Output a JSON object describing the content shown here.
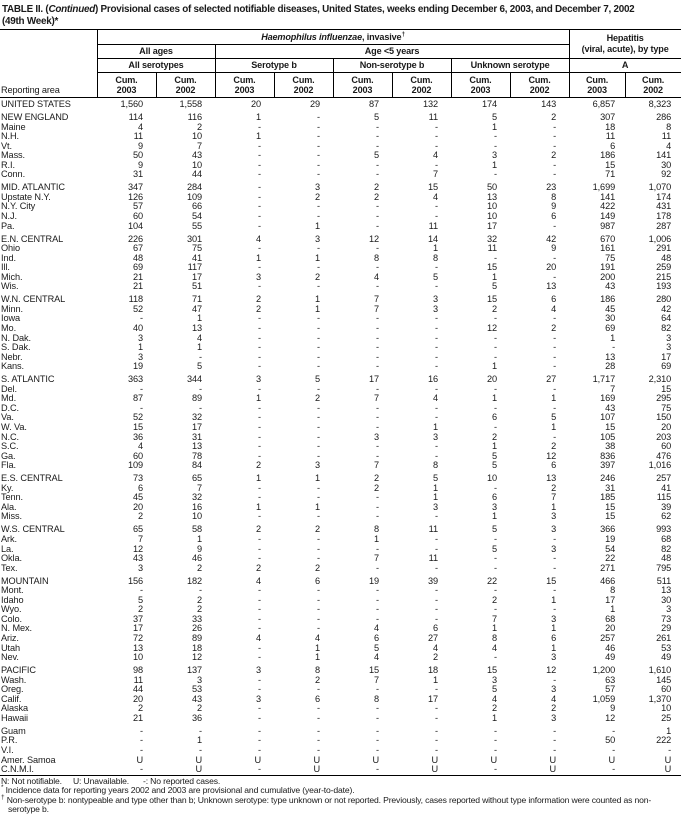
{
  "title": {
    "part1": "TABLE II. (",
    "part1_italic": "Continued",
    "part2": ") Provisional cases of selected notifiable diseases, United States, weeks ending December 6, 2003, and December 7, 2002",
    "line2": "(49th Week)*"
  },
  "table": {
    "header": {
      "reporting_area": "Reporting area",
      "haemophilus_italic": "Haemophilus influenzae",
      "haemophilus_rest": ", invasive",
      "haemophilus_sup": "†",
      "hepatitis_line1": "Hepatitis",
      "hepatitis_line2": "(viral, acute), by type",
      "all_ages": "All ages",
      "age_under5": "Age <5 years",
      "all_serotypes": "All serotypes",
      "serotype_b": "Serotype b",
      "non_serotype_b": "Non-serotype b",
      "unknown_serotype": "Unknown serotype",
      "hep_a": "A",
      "cum_label": "Cum.",
      "years": [
        "2003",
        "2002"
      ]
    },
    "rows": [
      {
        "area": "UNITED STATES",
        "gap": false,
        "values": [
          "1,560",
          "1,558",
          "20",
          "29",
          "87",
          "132",
          "174",
          "143",
          "6,857",
          "8,323"
        ]
      },
      {
        "area": "NEW ENGLAND",
        "gap": true,
        "values": [
          "114",
          "116",
          "1",
          "-",
          "5",
          "11",
          "5",
          "2",
          "307",
          "286"
        ]
      },
      {
        "area": "Maine",
        "gap": false,
        "values": [
          "4",
          "2",
          "-",
          "-",
          "-",
          "-",
          "1",
          "-",
          "18",
          "8"
        ]
      },
      {
        "area": "N.H.",
        "gap": false,
        "values": [
          "11",
          "10",
          "1",
          "-",
          "-",
          "-",
          "-",
          "-",
          "11",
          "11"
        ]
      },
      {
        "area": "Vt.",
        "gap": false,
        "values": [
          "9",
          "7",
          "-",
          "-",
          "-",
          "-",
          "-",
          "-",
          "6",
          "4"
        ]
      },
      {
        "area": "Mass.",
        "gap": false,
        "values": [
          "50",
          "43",
          "-",
          "-",
          "5",
          "4",
          "3",
          "2",
          "186",
          "141"
        ]
      },
      {
        "area": "R.I.",
        "gap": false,
        "values": [
          "9",
          "10",
          "-",
          "-",
          "-",
          "-",
          "1",
          "-",
          "15",
          "30"
        ]
      },
      {
        "area": "Conn.",
        "gap": false,
        "values": [
          "31",
          "44",
          "-",
          "-",
          "-",
          "7",
          "-",
          "-",
          "71",
          "92"
        ]
      },
      {
        "area": "MID. ATLANTIC",
        "gap": true,
        "values": [
          "347",
          "284",
          "-",
          "3",
          "2",
          "15",
          "50",
          "23",
          "1,699",
          "1,070"
        ]
      },
      {
        "area": "Upstate N.Y.",
        "gap": false,
        "values": [
          "126",
          "109",
          "-",
          "2",
          "2",
          "4",
          "13",
          "8",
          "141",
          "174"
        ]
      },
      {
        "area": "N.Y. City",
        "gap": false,
        "values": [
          "57",
          "66",
          "-",
          "-",
          "-",
          "-",
          "10",
          "9",
          "422",
          "431"
        ]
      },
      {
        "area": "N.J.",
        "gap": false,
        "values": [
          "60",
          "54",
          "-",
          "-",
          "-",
          "-",
          "10",
          "6",
          "149",
          "178"
        ]
      },
      {
        "area": "Pa.",
        "gap": false,
        "values": [
          "104",
          "55",
          "-",
          "1",
          "-",
          "11",
          "17",
          "-",
          "987",
          "287"
        ]
      },
      {
        "area": "E.N. CENTRAL",
        "gap": true,
        "values": [
          "226",
          "301",
          "4",
          "3",
          "12",
          "14",
          "32",
          "42",
          "670",
          "1,006"
        ]
      },
      {
        "area": "Ohio",
        "gap": false,
        "values": [
          "67",
          "75",
          "-",
          "-",
          "-",
          "1",
          "11",
          "9",
          "161",
          "291"
        ]
      },
      {
        "area": "Ind.",
        "gap": false,
        "values": [
          "48",
          "41",
          "1",
          "1",
          "8",
          "8",
          "-",
          "-",
          "75",
          "48"
        ]
      },
      {
        "area": "Ill.",
        "gap": false,
        "values": [
          "69",
          "117",
          "-",
          "-",
          "-",
          "-",
          "15",
          "20",
          "191",
          "259"
        ]
      },
      {
        "area": "Mich.",
        "gap": false,
        "values": [
          "21",
          "17",
          "3",
          "2",
          "4",
          "5",
          "1",
          "-",
          "200",
          "215"
        ]
      },
      {
        "area": "Wis.",
        "gap": false,
        "values": [
          "21",
          "51",
          "-",
          "-",
          "-",
          "-",
          "5",
          "13",
          "43",
          "193"
        ]
      },
      {
        "area": "W.N. CENTRAL",
        "gap": true,
        "values": [
          "118",
          "71",
          "2",
          "1",
          "7",
          "3",
          "15",
          "6",
          "186",
          "280"
        ]
      },
      {
        "area": "Minn.",
        "gap": false,
        "values": [
          "52",
          "47",
          "2",
          "1",
          "7",
          "3",
          "2",
          "4",
          "45",
          "42"
        ]
      },
      {
        "area": "Iowa",
        "gap": false,
        "values": [
          "-",
          "1",
          "-",
          "-",
          "-",
          "-",
          "-",
          "-",
          "30",
          "64"
        ]
      },
      {
        "area": "Mo.",
        "gap": false,
        "values": [
          "40",
          "13",
          "-",
          "-",
          "-",
          "-",
          "12",
          "2",
          "69",
          "82"
        ]
      },
      {
        "area": "N. Dak.",
        "gap": false,
        "values": [
          "3",
          "4",
          "-",
          "-",
          "-",
          "-",
          "-",
          "-",
          "1",
          "3"
        ]
      },
      {
        "area": "S. Dak.",
        "gap": false,
        "values": [
          "1",
          "1",
          "-",
          "-",
          "-",
          "-",
          "-",
          "-",
          "-",
          "3"
        ]
      },
      {
        "area": "Nebr.",
        "gap": false,
        "values": [
          "3",
          "-",
          "-",
          "-",
          "-",
          "-",
          "-",
          "-",
          "13",
          "17"
        ]
      },
      {
        "area": "Kans.",
        "gap": false,
        "values": [
          "19",
          "5",
          "-",
          "-",
          "-",
          "-",
          "1",
          "-",
          "28",
          "69"
        ]
      },
      {
        "area": "S. ATLANTIC",
        "gap": true,
        "values": [
          "363",
          "344",
          "3",
          "5",
          "17",
          "16",
          "20",
          "27",
          "1,717",
          "2,310"
        ]
      },
      {
        "area": "Del.",
        "gap": false,
        "values": [
          "-",
          "-",
          "-",
          "-",
          "-",
          "-",
          "-",
          "-",
          "7",
          "15"
        ]
      },
      {
        "area": "Md.",
        "gap": false,
        "values": [
          "87",
          "89",
          "1",
          "2",
          "7",
          "4",
          "1",
          "1",
          "169",
          "295"
        ]
      },
      {
        "area": "D.C.",
        "gap": false,
        "values": [
          "-",
          "-",
          "-",
          "-",
          "-",
          "-",
          "-",
          "-",
          "43",
          "75"
        ]
      },
      {
        "area": "Va.",
        "gap": false,
        "values": [
          "52",
          "32",
          "-",
          "-",
          "-",
          "-",
          "6",
          "5",
          "107",
          "150"
        ]
      },
      {
        "area": "W. Va.",
        "gap": false,
        "values": [
          "15",
          "17",
          "-",
          "-",
          "-",
          "1",
          "-",
          "1",
          "15",
          "20"
        ]
      },
      {
        "area": "N.C.",
        "gap": false,
        "values": [
          "36",
          "31",
          "-",
          "-",
          "3",
          "3",
          "2",
          "-",
          "105",
          "203"
        ]
      },
      {
        "area": "S.C.",
        "gap": false,
        "values": [
          "4",
          "13",
          "-",
          "-",
          "-",
          "-",
          "1",
          "2",
          "38",
          "60"
        ]
      },
      {
        "area": "Ga.",
        "gap": false,
        "values": [
          "60",
          "78",
          "-",
          "-",
          "-",
          "-",
          "5",
          "12",
          "836",
          "476"
        ]
      },
      {
        "area": "Fla.",
        "gap": false,
        "values": [
          "109",
          "84",
          "2",
          "3",
          "7",
          "8",
          "5",
          "6",
          "397",
          "1,016"
        ]
      },
      {
        "area": "E.S. CENTRAL",
        "gap": true,
        "values": [
          "73",
          "65",
          "1",
          "1",
          "2",
          "5",
          "10",
          "13",
          "246",
          "257"
        ]
      },
      {
        "area": "Ky.",
        "gap": false,
        "values": [
          "6",
          "7",
          "-",
          "-",
          "2",
          "1",
          "-",
          "2",
          "31",
          "41"
        ]
      },
      {
        "area": "Tenn.",
        "gap": false,
        "values": [
          "45",
          "32",
          "-",
          "-",
          "-",
          "1",
          "6",
          "7",
          "185",
          "115"
        ]
      },
      {
        "area": "Ala.",
        "gap": false,
        "values": [
          "20",
          "16",
          "1",
          "1",
          "-",
          "3",
          "3",
          "1",
          "15",
          "39"
        ]
      },
      {
        "area": "Miss.",
        "gap": false,
        "values": [
          "2",
          "10",
          "-",
          "-",
          "-",
          "-",
          "1",
          "3",
          "15",
          "62"
        ]
      },
      {
        "area": "W.S. CENTRAL",
        "gap": true,
        "values": [
          "65",
          "58",
          "2",
          "2",
          "8",
          "11",
          "5",
          "3",
          "366",
          "993"
        ]
      },
      {
        "area": "Ark.",
        "gap": false,
        "values": [
          "7",
          "1",
          "-",
          "-",
          "1",
          "-",
          "-",
          "-",
          "19",
          "68"
        ]
      },
      {
        "area": "La.",
        "gap": false,
        "values": [
          "12",
          "9",
          "-",
          "-",
          "-",
          "-",
          "5",
          "3",
          "54",
          "82"
        ]
      },
      {
        "area": "Okla.",
        "gap": false,
        "values": [
          "43",
          "46",
          "-",
          "-",
          "7",
          "11",
          "-",
          "-",
          "22",
          "48"
        ]
      },
      {
        "area": "Tex.",
        "gap": false,
        "values": [
          "3",
          "2",
          "2",
          "2",
          "-",
          "-",
          "-",
          "-",
          "271",
          "795"
        ]
      },
      {
        "area": "MOUNTAIN",
        "gap": true,
        "values": [
          "156",
          "182",
          "4",
          "6",
          "19",
          "39",
          "22",
          "15",
          "466",
          "511"
        ]
      },
      {
        "area": "Mont.",
        "gap": false,
        "values": [
          "-",
          "-",
          "-",
          "-",
          "-",
          "-",
          "-",
          "-",
          "8",
          "13"
        ]
      },
      {
        "area": "Idaho",
        "gap": false,
        "values": [
          "5",
          "2",
          "-",
          "-",
          "-",
          "-",
          "2",
          "1",
          "17",
          "30"
        ]
      },
      {
        "area": "Wyo.",
        "gap": false,
        "values": [
          "2",
          "2",
          "-",
          "-",
          "-",
          "-",
          "-",
          "-",
          "1",
          "3"
        ]
      },
      {
        "area": "Colo.",
        "gap": false,
        "values": [
          "37",
          "33",
          "-",
          "-",
          "-",
          "-",
          "7",
          "3",
          "68",
          "73"
        ]
      },
      {
        "area": "N. Mex.",
        "gap": false,
        "values": [
          "17",
          "26",
          "-",
          "-",
          "4",
          "6",
          "1",
          "1",
          "20",
          "29"
        ]
      },
      {
        "area": "Ariz.",
        "gap": false,
        "values": [
          "72",
          "89",
          "4",
          "4",
          "6",
          "27",
          "8",
          "6",
          "257",
          "261"
        ]
      },
      {
        "area": "Utah",
        "gap": false,
        "values": [
          "13",
          "18",
          "-",
          "1",
          "5",
          "4",
          "4",
          "1",
          "46",
          "53"
        ]
      },
      {
        "area": "Nev.",
        "gap": false,
        "values": [
          "10",
          "12",
          "-",
          "1",
          "4",
          "2",
          "-",
          "3",
          "49",
          "49"
        ]
      },
      {
        "area": "PACIFIC",
        "gap": true,
        "values": [
          "98",
          "137",
          "3",
          "8",
          "15",
          "18",
          "15",
          "12",
          "1,200",
          "1,610"
        ]
      },
      {
        "area": "Wash.",
        "gap": false,
        "values": [
          "11",
          "3",
          "-",
          "2",
          "7",
          "1",
          "3",
          "-",
          "63",
          "145"
        ]
      },
      {
        "area": "Oreg.",
        "gap": false,
        "values": [
          "44",
          "53",
          "-",
          "-",
          "-",
          "-",
          "5",
          "3",
          "57",
          "60"
        ]
      },
      {
        "area": "Calif.",
        "gap": false,
        "values": [
          "20",
          "43",
          "3",
          "6",
          "8",
          "17",
          "4",
          "4",
          "1,059",
          "1,370"
        ]
      },
      {
        "area": "Alaska",
        "gap": false,
        "values": [
          "2",
          "2",
          "-",
          "-",
          "-",
          "-",
          "2",
          "2",
          "9",
          "10"
        ]
      },
      {
        "area": "Hawaii",
        "gap": false,
        "values": [
          "21",
          "36",
          "-",
          "-",
          "-",
          "-",
          "1",
          "3",
          "12",
          "25"
        ]
      },
      {
        "area": "Guam",
        "gap": true,
        "values": [
          "-",
          "-",
          "-",
          "-",
          "-",
          "-",
          "-",
          "-",
          "-",
          "1"
        ]
      },
      {
        "area": "P.R.",
        "gap": false,
        "values": [
          "-",
          "1",
          "-",
          "-",
          "-",
          "-",
          "-",
          "-",
          "50",
          "222"
        ]
      },
      {
        "area": "V.I.",
        "gap": false,
        "values": [
          "-",
          "-",
          "-",
          "-",
          "-",
          "-",
          "-",
          "-",
          "-",
          "-"
        ]
      },
      {
        "area": "Amer. Samoa",
        "gap": false,
        "values": [
          "U",
          "U",
          "U",
          "U",
          "U",
          "U",
          "U",
          "U",
          "U",
          "U"
        ]
      },
      {
        "area": "C.N.M.I.",
        "gap": false,
        "values": [
          "-",
          "U",
          "-",
          "U",
          "-",
          "U",
          "-",
          "U",
          "-",
          "U"
        ]
      }
    ]
  },
  "footer": {
    "legend": [
      "N: Not notifiable.",
      "U: Unavailable.",
      "-: No reported cases."
    ],
    "footnotes": [
      {
        "sym": "*",
        "text": "Incidence data for reporting years 2002 and 2003 are provisional and cumulative (year-to-date)."
      },
      {
        "sym": "†",
        "text": "Non-serotype b: nontypeable and type other than b; Unknown serotype: type unknown or not reported. Previously, cases reported without type information were counted as non-serotype b."
      }
    ]
  }
}
